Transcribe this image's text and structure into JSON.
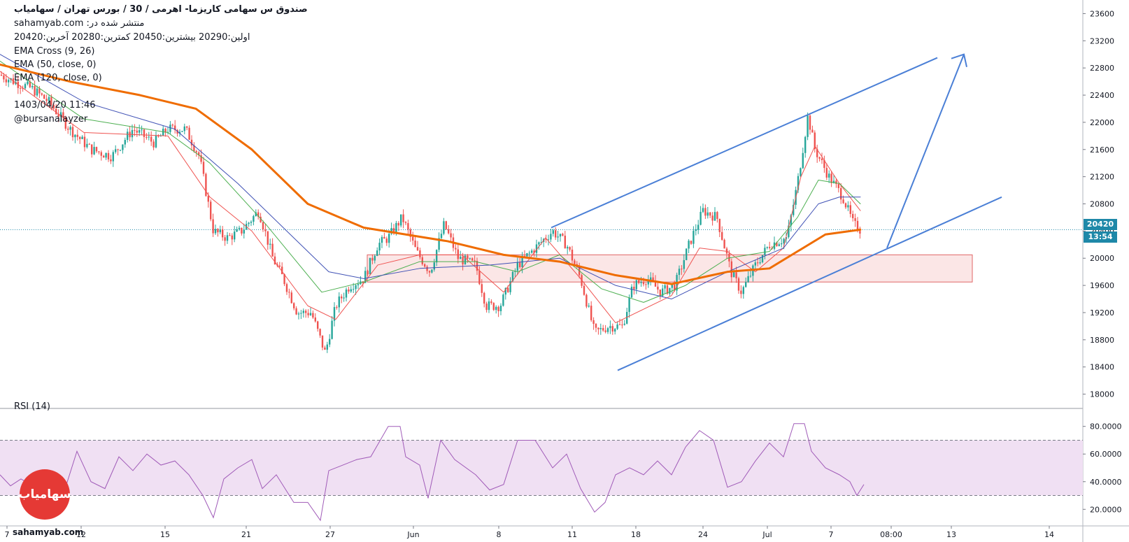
{
  "header": {
    "title": "صندوق س سهامی کاریزما- اهرمی /  30 /  بورس تهران / سهامیاب",
    "published": "منتشر شده در: sahamyab.com",
    "ohlc": "اولین:20290  بیشترین:20450  کمترین:20280  آخرین:20420",
    "indicators": [
      "EMA Cross (9, 26)",
      "EMA (50, close, 0)",
      "EMA (120, close, 0)"
    ],
    "datetime": "1403/04/20 11:46",
    "author": "@bursanalayzer"
  },
  "rsi_label": "RSI (14)",
  "price_tag": {
    "value": "20420",
    "countdown": "13:54"
  },
  "logo": {
    "text": "سهامیاب",
    "site": "sahamyab.com"
  },
  "colors": {
    "up_candle": "#26a69a",
    "down_candle": "#ef5350",
    "ema9": "#ef5350",
    "ema26": "#4caf50",
    "ema50": "#3f51b5",
    "ema120": "#ef6c00",
    "trend": "#4a7fd6",
    "zone_fill": "#f8d6d6",
    "zone_stroke": "#e06666",
    "rsi_line": "#a05bb8",
    "rsi_band": "#f0e0f3",
    "price_line": "#1e88a8"
  },
  "chart_data": [
    {
      "type": "candlestick",
      "title": "",
      "x_ticks": [
        "7",
        "12",
        "15",
        "21",
        "27",
        "Jun",
        "8",
        "11",
        "18",
        "24",
        "Jul",
        "7",
        "13",
        "14",
        "08:00"
      ],
      "y_ticks": [
        "18000",
        "18400",
        "18800",
        "19200",
        "19600",
        "20000",
        "20400",
        "20800",
        "21200",
        "21600",
        "22000",
        "22400",
        "22800",
        "23200",
        "23600"
      ],
      "ylim": [
        17800,
        23800
      ],
      "last_price": 20420,
      "close_path": [
        [
          0,
          22700
        ],
        [
          20,
          22600
        ],
        [
          45,
          22500
        ],
        [
          70,
          22300
        ],
        [
          100,
          21900
        ],
        [
          130,
          21600
        ],
        [
          160,
          21500
        ],
        [
          190,
          21900
        ],
        [
          220,
          21700
        ],
        [
          240,
          21900
        ],
        [
          265,
          21900
        ],
        [
          285,
          21500
        ],
        [
          305,
          20400
        ],
        [
          325,
          20300
        ],
        [
          345,
          20400
        ],
        [
          370,
          20700
        ],
        [
          390,
          20000
        ],
        [
          405,
          19700
        ],
        [
          425,
          19200
        ],
        [
          445,
          19200
        ],
        [
          465,
          18600
        ],
        [
          480,
          19300
        ],
        [
          500,
          19600
        ],
        [
          520,
          19700
        ],
        [
          540,
          20200
        ],
        [
          555,
          20300
        ],
        [
          575,
          20600
        ],
        [
          595,
          20100
        ],
        [
          615,
          19800
        ],
        [
          635,
          20500
        ],
        [
          655,
          20000
        ],
        [
          680,
          19900
        ],
        [
          695,
          19300
        ],
        [
          715,
          19300
        ],
        [
          740,
          19900
        ],
        [
          770,
          20200
        ],
        [
          790,
          20400
        ],
        [
          810,
          20200
        ],
        [
          830,
          19700
        ],
        [
          850,
          18900
        ],
        [
          870,
          19000
        ],
        [
          890,
          19000
        ],
        [
          905,
          19600
        ],
        [
          925,
          19700
        ],
        [
          945,
          19500
        ],
        [
          965,
          19600
        ],
        [
          985,
          20200
        ],
        [
          1005,
          20700
        ],
        [
          1025,
          20600
        ],
        [
          1045,
          19800
        ],
        [
          1060,
          19500
        ],
        [
          1080,
          19900
        ],
        [
          1100,
          20200
        ],
        [
          1125,
          20300
        ],
        [
          1140,
          21100
        ],
        [
          1155,
          22100
        ],
        [
          1165,
          21600
        ],
        [
          1185,
          21200
        ],
        [
          1205,
          20900
        ],
        [
          1220,
          20500
        ],
        [
          1230,
          20420
        ]
      ],
      "ema": {
        "ema9": [
          [
            0,
            22750
          ],
          [
            120,
            21850
          ],
          [
            240,
            21800
          ],
          [
            300,
            20900
          ],
          [
            360,
            20400
          ],
          [
            440,
            19300
          ],
          [
            480,
            19100
          ],
          [
            540,
            19900
          ],
          [
            600,
            20050
          ],
          [
            660,
            20050
          ],
          [
            720,
            19500
          ],
          [
            780,
            20300
          ],
          [
            830,
            19700
          ],
          [
            880,
            19050
          ],
          [
            960,
            19450
          ],
          [
            1000,
            20150
          ],
          [
            1040,
            20100
          ],
          [
            1080,
            19800
          ],
          [
            1120,
            20150
          ],
          [
            1145,
            21200
          ],
          [
            1165,
            21650
          ],
          [
            1200,
            21100
          ],
          [
            1230,
            20700
          ]
        ],
        "ema26": [
          [
            0,
            22900
          ],
          [
            120,
            22050
          ],
          [
            240,
            21850
          ],
          [
            300,
            21400
          ],
          [
            380,
            20500
          ],
          [
            460,
            19500
          ],
          [
            520,
            19650
          ],
          [
            600,
            19950
          ],
          [
            680,
            19950
          ],
          [
            740,
            19800
          ],
          [
            800,
            20050
          ],
          [
            860,
            19550
          ],
          [
            920,
            19350
          ],
          [
            980,
            19600
          ],
          [
            1040,
            20000
          ],
          [
            1100,
            20100
          ],
          [
            1140,
            20600
          ],
          [
            1170,
            21150
          ],
          [
            1200,
            21100
          ],
          [
            1230,
            20800
          ]
        ],
        "ema50": [
          [
            0,
            23000
          ],
          [
            120,
            22300
          ],
          [
            250,
            21900
          ],
          [
            340,
            21100
          ],
          [
            420,
            20300
          ],
          [
            470,
            19800
          ],
          [
            520,
            19700
          ],
          [
            600,
            19850
          ],
          [
            700,
            19900
          ],
          [
            800,
            20000
          ],
          [
            880,
            19600
          ],
          [
            960,
            19400
          ],
          [
            1040,
            19800
          ],
          [
            1120,
            20150
          ],
          [
            1170,
            20800
          ],
          [
            1200,
            20900
          ],
          [
            1230,
            20900
          ]
        ],
        "ema120": [
          [
            0,
            22850
          ],
          [
            100,
            22600
          ],
          [
            200,
            22400
          ],
          [
            280,
            22200
          ],
          [
            360,
            21600
          ],
          [
            440,
            20800
          ],
          [
            520,
            20450
          ],
          [
            580,
            20350
          ],
          [
            640,
            20250
          ],
          [
            720,
            20050
          ],
          [
            800,
            19950
          ],
          [
            880,
            19750
          ],
          [
            960,
            19620
          ],
          [
            1040,
            19800
          ],
          [
            1100,
            19850
          ],
          [
            1140,
            20100
          ],
          [
            1180,
            20350
          ],
          [
            1230,
            20420
          ]
        ]
      },
      "trend_lines": [
        {
          "from": [
            "Jun 11",
            20450
          ],
          "to": [
            "Jul 13",
            22950
          ]
        },
        {
          "from": [
            "Jun 16",
            18350
          ],
          "to": [
            "Jul 15",
            20900
          ]
        }
      ],
      "projection_arrow": {
        "from": [
          "Jul 9",
          20150
        ],
        "to": [
          "Jul 13",
          23000
        ]
      },
      "support_zone": {
        "x_range": [
          "May 27",
          "Jul 14"
        ],
        "y_range": [
          19650,
          20050
        ]
      }
    },
    {
      "type": "line",
      "title": "RSI (14)",
      "y_ticks": [
        "20.0000",
        "40.0000",
        "60.0000",
        "80.0000"
      ],
      "ylim": [
        8,
        93
      ],
      "bands": [
        30,
        70
      ],
      "values": [
        [
          0,
          45
        ],
        [
          15,
          37
        ],
        [
          30,
          42
        ],
        [
          50,
          36
        ],
        [
          70,
          42
        ],
        [
          90,
          30
        ],
        [
          110,
          62
        ],
        [
          130,
          40
        ],
        [
          150,
          35
        ],
        [
          170,
          58
        ],
        [
          190,
          48
        ],
        [
          210,
          60
        ],
        [
          230,
          52
        ],
        [
          250,
          55
        ],
        [
          270,
          45
        ],
        [
          290,
          30
        ],
        [
          305,
          14
        ],
        [
          320,
          42
        ],
        [
          340,
          50
        ],
        [
          360,
          56
        ],
        [
          375,
          35
        ],
        [
          395,
          45
        ],
        [
          420,
          25
        ],
        [
          440,
          25
        ],
        [
          458,
          12
        ],
        [
          470,
          48
        ],
        [
          490,
          52
        ],
        [
          510,
          56
        ],
        [
          530,
          58
        ],
        [
          555,
          80
        ],
        [
          572,
          80
        ],
        [
          580,
          58
        ],
        [
          600,
          52
        ],
        [
          612,
          28
        ],
        [
          630,
          70
        ],
        [
          650,
          56
        ],
        [
          680,
          45
        ],
        [
          700,
          34
        ],
        [
          720,
          38
        ],
        [
          740,
          70
        ],
        [
          765,
          70
        ],
        [
          790,
          50
        ],
        [
          810,
          60
        ],
        [
          830,
          35
        ],
        [
          850,
          18
        ],
        [
          865,
          25
        ],
        [
          880,
          45
        ],
        [
          900,
          50
        ],
        [
          920,
          45
        ],
        [
          940,
          55
        ],
        [
          960,
          45
        ],
        [
          980,
          65
        ],
        [
          1000,
          77
        ],
        [
          1020,
          70
        ],
        [
          1040,
          36
        ],
        [
          1060,
          40
        ],
        [
          1080,
          55
        ],
        [
          1100,
          68
        ],
        [
          1120,
          58
        ],
        [
          1135,
          82
        ],
        [
          1150,
          82
        ],
        [
          1160,
          62
        ],
        [
          1180,
          50
        ],
        [
          1200,
          45
        ],
        [
          1215,
          40
        ],
        [
          1225,
          30
        ],
        [
          1235,
          38
        ]
      ]
    }
  ]
}
